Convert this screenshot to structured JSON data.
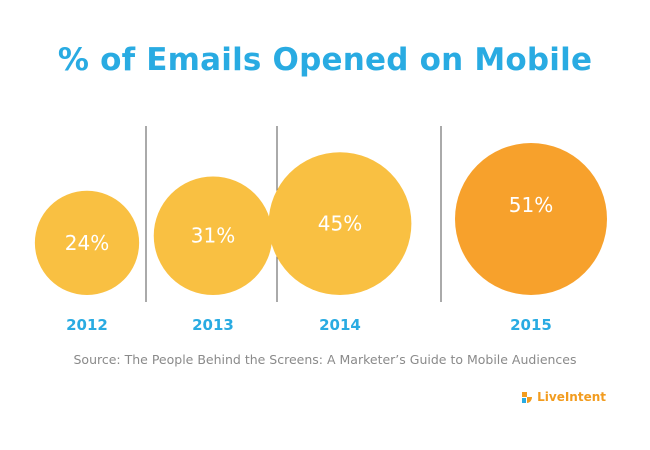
{
  "chart_data": {
    "type": "bubble",
    "title": "% of Emails Opened on Mobile",
    "categories": [
      "2012",
      "2013",
      "2014",
      "2015"
    ],
    "values": [
      24,
      31,
      45,
      51
    ],
    "value_labels": [
      "24%",
      "31%",
      "45%",
      "51%"
    ],
    "unit": "%",
    "colors": {
      "bubble": "#f9c042",
      "highlight_bubble": "#f7a12c",
      "category_label": "#29abe2",
      "value_label": "#ffffff",
      "divider": "#555555"
    },
    "highlight_index": 3
  },
  "source": "Source: The People Behind the Screens: A Marketer’s Guide to Mobile Audiences",
  "brand": {
    "name": "LiveIntent",
    "color": "#f29c1f",
    "icon": "liveintent-logo-icon"
  }
}
